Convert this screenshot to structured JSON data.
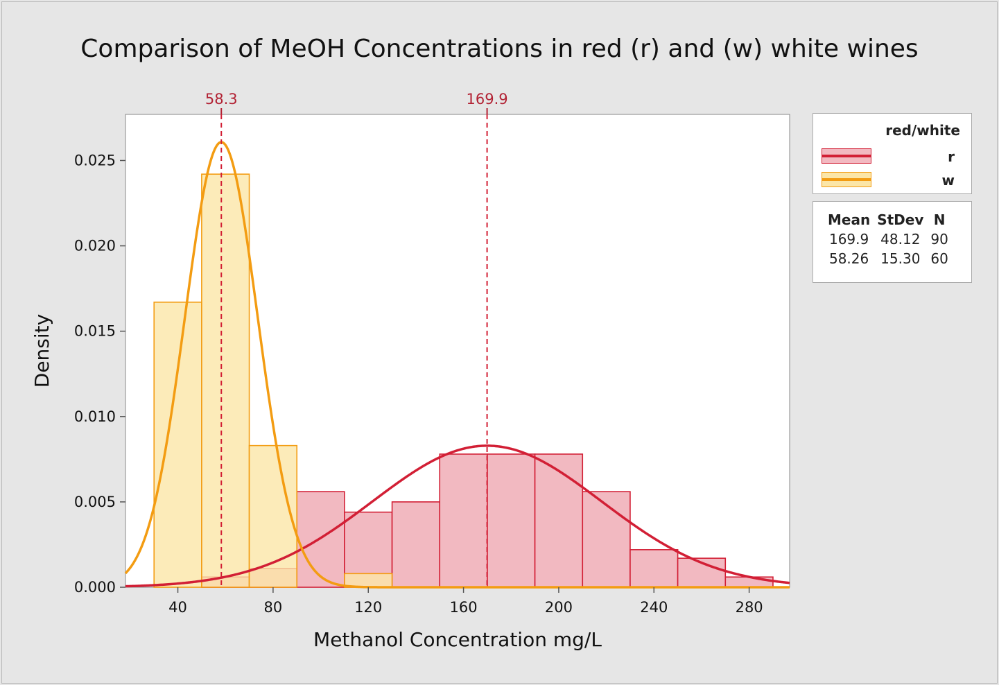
{
  "chart_data": {
    "type": "histogram",
    "title": "Comparison of MeOH Concentrations in red (r) and (w) white wines",
    "xlabel": "Methanol Concentration mg/L",
    "ylabel": "Density",
    "xlim": [
      18,
      297
    ],
    "ylim": [
      0,
      0.0277
    ],
    "x_ticks": [
      40,
      80,
      120,
      160,
      200,
      240,
      280
    ],
    "y_ticks": [
      "0.000",
      "0.005",
      "0.010",
      "0.015",
      "0.020",
      "0.025"
    ],
    "grid": false,
    "legend_placement": "right",
    "legend_title": "red/white",
    "series": [
      {
        "name": "r",
        "color": "#d21f35",
        "fill": "#f2b9c1",
        "bin_width": 20,
        "bins": [
          {
            "start": 50,
            "density": 0.0006
          },
          {
            "start": 70,
            "density": 0.0011
          },
          {
            "start": 90,
            "density": 0.0056
          },
          {
            "start": 110,
            "density": 0.0044
          },
          {
            "start": 130,
            "density": 0.005
          },
          {
            "start": 150,
            "density": 0.0078
          },
          {
            "start": 170,
            "density": 0.0078
          },
          {
            "start": 190,
            "density": 0.0078
          },
          {
            "start": 210,
            "density": 0.0056
          },
          {
            "start": 230,
            "density": 0.0022
          },
          {
            "start": 250,
            "density": 0.0017
          },
          {
            "start": 270,
            "density": 0.0006
          }
        ],
        "mean": 169.9,
        "mean_label": "169.9",
        "stdev": 48.12,
        "n": 90
      },
      {
        "name": "w",
        "color": "#f39c12",
        "fill": "#fbe6a8",
        "bin_width": 20,
        "bins": [
          {
            "start": 30,
            "density": 0.0167
          },
          {
            "start": 50,
            "density": 0.0242
          },
          {
            "start": 70,
            "density": 0.0083
          },
          {
            "start": 110,
            "density": 0.0008
          }
        ],
        "mean": 58.26,
        "mean_label": "58.3",
        "stdev": 15.3,
        "n": 60
      }
    ],
    "stats_table": {
      "headers": [
        "Mean",
        "StDev",
        "N"
      ],
      "rows": [
        [
          "169.9",
          "48.12",
          "90"
        ],
        [
          "58.26",
          "15.30",
          "60"
        ]
      ]
    }
  }
}
